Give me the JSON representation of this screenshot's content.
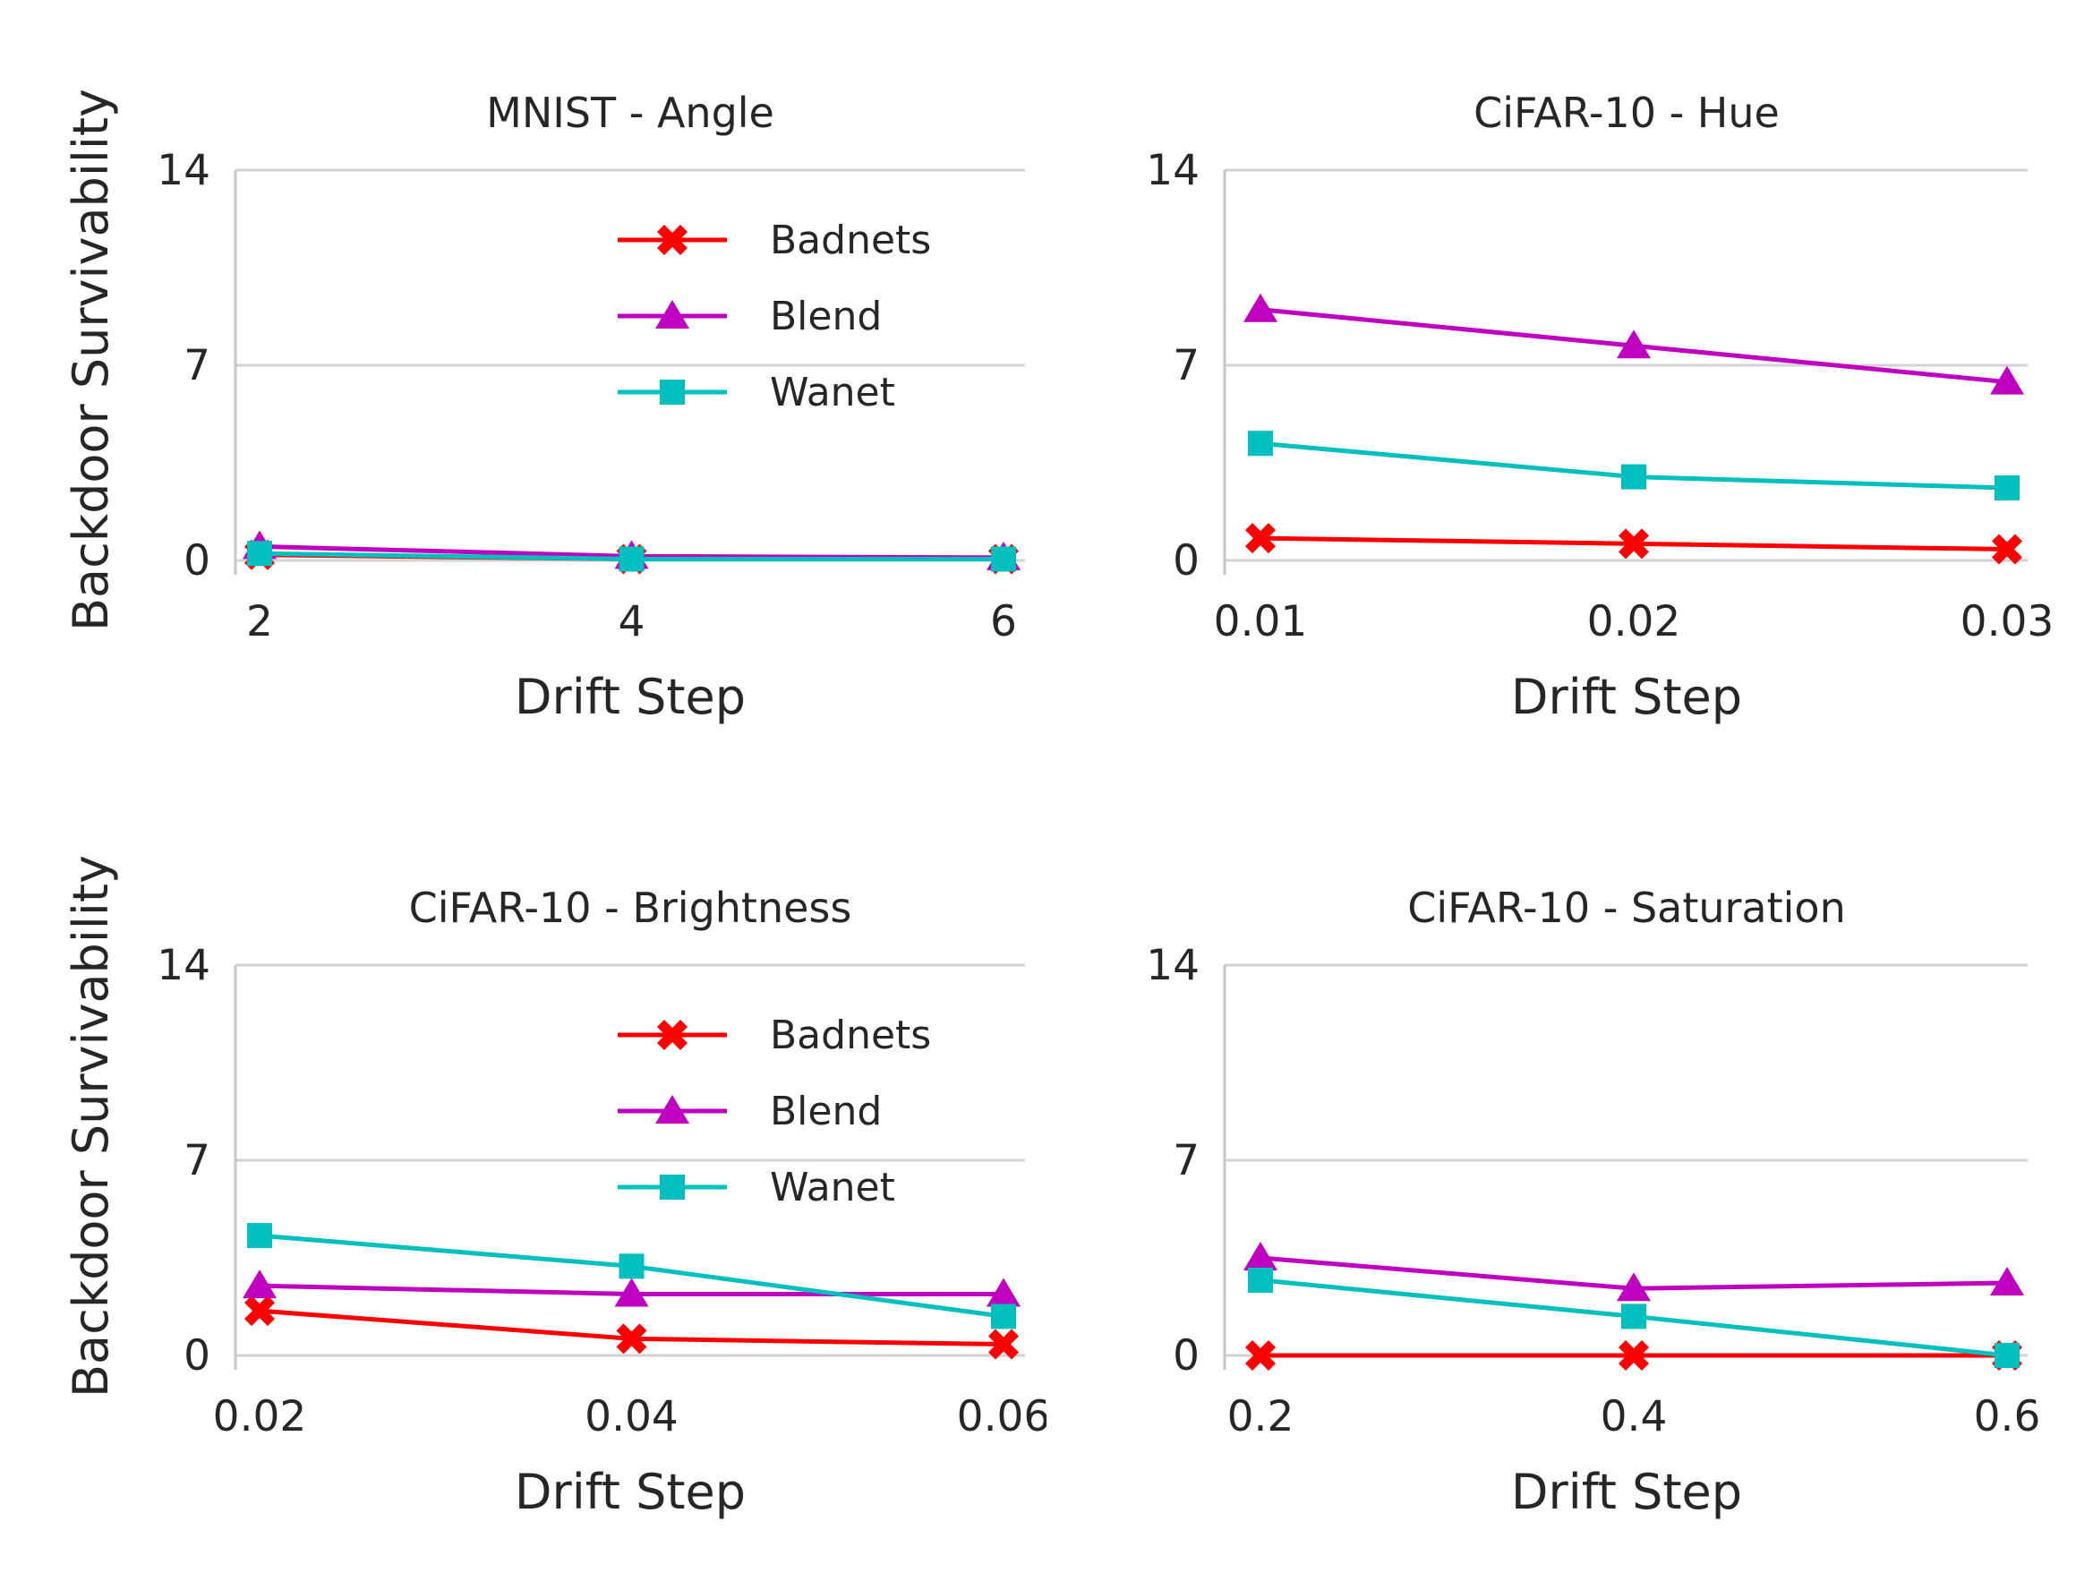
{
  "figure": {
    "background": "#ffffff",
    "text_color": "#262626",
    "grid_color": "#d2d2d2",
    "spine_color": "#c6c6c6"
  },
  "chart_data": [
    {
      "type": "line",
      "title": "MNIST - Angle",
      "xlabel": "Drift Step",
      "ylabel": "Backdoor Survivability",
      "x": [
        2,
        4,
        6
      ],
      "xtick_labels": [
        "2",
        "4",
        "6"
      ],
      "yticks": [
        0,
        7,
        14
      ],
      "ytick_labels": [
        "0",
        "7",
        "14"
      ],
      "ylim": [
        0,
        14
      ],
      "grid": true,
      "legend": true,
      "legend_position": "upper right",
      "series": [
        {
          "name": "Badnets",
          "color": "#ff0000",
          "marker": "x",
          "values": [
            0.2,
            0.05,
            0.05
          ]
        },
        {
          "name": "Blend",
          "color": "#c000c0",
          "marker": "triangle",
          "values": [
            0.5,
            0.15,
            0.1
          ]
        },
        {
          "name": "Wanet",
          "color": "#00bfbf",
          "marker": "square",
          "values": [
            0.25,
            0.05,
            0.05
          ]
        }
      ]
    },
    {
      "type": "line",
      "title": "CiFAR-10 - Hue",
      "xlabel": "Drift Step",
      "ylabel": "",
      "x": [
        0.01,
        0.02,
        0.03
      ],
      "xtick_labels": [
        "0.01",
        "0.02",
        "0.03"
      ],
      "yticks": [
        0,
        7,
        14
      ],
      "ytick_labels": [
        "0",
        "7",
        "14"
      ],
      "ylim": [
        0,
        14
      ],
      "grid": true,
      "legend": false,
      "legend_position": "",
      "series": [
        {
          "name": "Badnets",
          "color": "#ff0000",
          "marker": "x",
          "values": [
            0.8,
            0.6,
            0.4
          ]
        },
        {
          "name": "Blend",
          "color": "#c000c0",
          "marker": "triangle",
          "values": [
            9.0,
            7.7,
            6.4
          ]
        },
        {
          "name": "Wanet",
          "color": "#00bfbf",
          "marker": "square",
          "values": [
            4.2,
            3.0,
            2.6
          ]
        }
      ]
    },
    {
      "type": "line",
      "title": "CiFAR-10 - Brightness",
      "xlabel": "Drift Step",
      "ylabel": "Backdoor Survivability",
      "x": [
        0.02,
        0.04,
        0.06
      ],
      "xtick_labels": [
        "0.02",
        "0.04",
        "0.06"
      ],
      "yticks": [
        0,
        7,
        14
      ],
      "ytick_labels": [
        "0",
        "7",
        "14"
      ],
      "ylim": [
        0,
        14
      ],
      "grid": true,
      "legend": true,
      "legend_position": "upper right",
      "series": [
        {
          "name": "Badnets",
          "color": "#ff0000",
          "marker": "x",
          "values": [
            1.6,
            0.6,
            0.4
          ]
        },
        {
          "name": "Blend",
          "color": "#c000c0",
          "marker": "triangle",
          "values": [
            2.5,
            2.2,
            2.2
          ]
        },
        {
          "name": "Wanet",
          "color": "#00bfbf",
          "marker": "square",
          "values": [
            4.3,
            3.2,
            1.4
          ]
        }
      ]
    },
    {
      "type": "line",
      "title": "CiFAR-10 - Saturation",
      "xlabel": "Drift Step",
      "ylabel": "",
      "x": [
        0.2,
        0.4,
        0.6
      ],
      "xtick_labels": [
        "0.2",
        "0.4",
        "0.6"
      ],
      "yticks": [
        0,
        7,
        14
      ],
      "ytick_labels": [
        "0",
        "7",
        "14"
      ],
      "ylim": [
        0,
        14
      ],
      "grid": true,
      "legend": false,
      "legend_position": "",
      "series": [
        {
          "name": "Badnets",
          "color": "#ff0000",
          "marker": "x",
          "values": [
            0.0,
            0.0,
            0.0
          ]
        },
        {
          "name": "Blend",
          "color": "#c000c0",
          "marker": "triangle",
          "values": [
            3.5,
            2.4,
            2.6
          ]
        },
        {
          "name": "Wanet",
          "color": "#00bfbf",
          "marker": "square",
          "values": [
            2.7,
            1.4,
            0.0
          ]
        }
      ]
    }
  ]
}
